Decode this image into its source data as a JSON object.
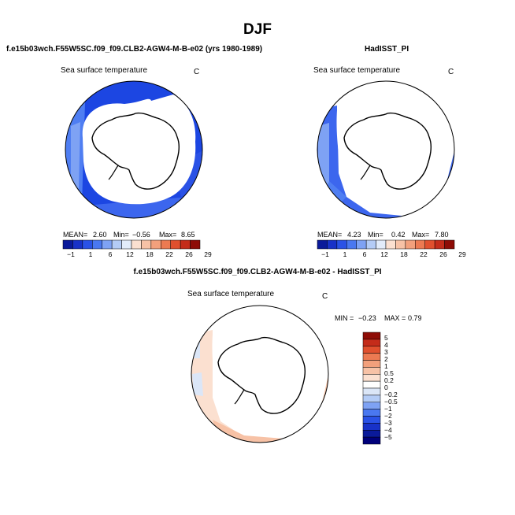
{
  "title": "DJF",
  "panel_model": {
    "title": "f.e15b03wch.F55W5SC.f09_f09.CLB2-AGW4-M-B-e02 (yrs 1980-1989)",
    "variable": "Sea surface temperature",
    "units": "C",
    "mean_label": "MEAN=",
    "mean": "2.60",
    "min_label": "Min=",
    "min": "−0.56",
    "max_label": "Max=",
    "max": "8.65"
  },
  "panel_obs": {
    "title": "HadISST_PI",
    "variable": "Sea surface temperature",
    "units": "C",
    "mean_label": "MEAN=",
    "mean": "4.23",
    "min_label": "Min=",
    "min": "0.42",
    "max_label": "Max=",
    "max": "7.80"
  },
  "panel_diff": {
    "title": "f.e15b03wch.F55W5SC.f09_f09.CLB2-AGW4-M-B-e02 - HadISST_PI",
    "variable": "Sea surface temperature",
    "units": "C",
    "min_label": "MIN =",
    "min": "−0.23",
    "max_label": "MAX =",
    "max": "0.79"
  },
  "abs_colorbar": {
    "ticks": [
      "−1",
      "1",
      "6",
      "12",
      "18",
      "22",
      "26",
      "29"
    ],
    "colors": [
      "#0a1a9a",
      "#1832c8",
      "#2a52e6",
      "#4a78f0",
      "#7ea2f4",
      "#b4ccf6",
      "#e2ecfa",
      "#fbe0d0",
      "#f7c2a6",
      "#f2a07c",
      "#ec7a52",
      "#e0502e",
      "#c42c1a",
      "#8e0c06"
    ]
  },
  "diff_colorbar": {
    "labels": [
      "5",
      "4",
      "3",
      "2",
      "1",
      "0.5",
      "0.2",
      "0",
      "−0.2",
      "−0.5",
      "−1",
      "−2",
      "−3",
      "−4",
      "−5"
    ],
    "colors": [
      "#8e0c06",
      "#c42c1a",
      "#e0502e",
      "#ec7a52",
      "#f2a07c",
      "#f7c2a6",
      "#fbe0d0",
      "#ffffff",
      "#dbe6f7",
      "#b4ccf6",
      "#7ea2f4",
      "#4a78f0",
      "#2a52e6",
      "#1832c8",
      "#0a1a9a",
      "#00007a"
    ]
  }
}
